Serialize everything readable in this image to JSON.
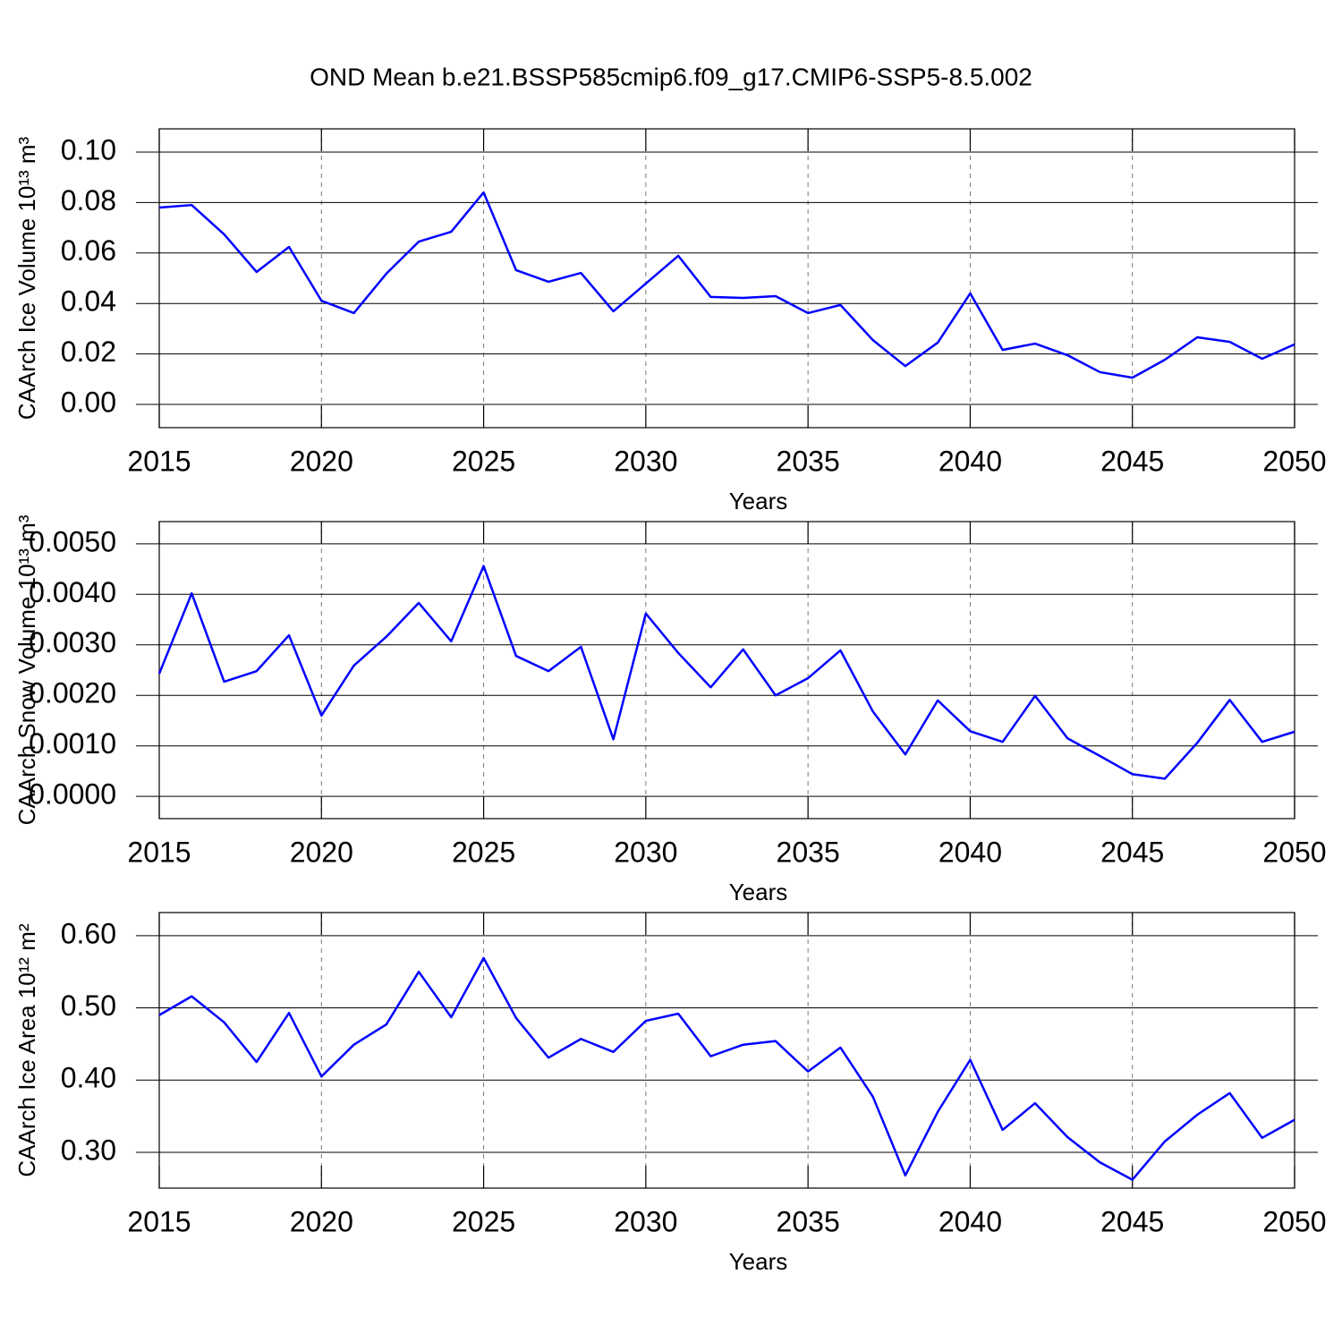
{
  "title": "OND Mean b.e21.BSSP585cmip6.f09_g17.CMIP6-SSP5-8.5.002",
  "chart_data": [
    {
      "type": "line",
      "ylabel": "CAArch Ice Volume 10¹³ m³",
      "xlabel": "Years",
      "x": [
        2015,
        2016,
        2017,
        2018,
        2019,
        2020,
        2021,
        2022,
        2023,
        2024,
        2025,
        2026,
        2027,
        2028,
        2029,
        2030,
        2031,
        2032,
        2033,
        2034,
        2035,
        2036,
        2037,
        2038,
        2039,
        2040,
        2041,
        2042,
        2043,
        2044,
        2045,
        2046,
        2047,
        2048,
        2049,
        2050
      ],
      "values": [
        0.078,
        0.079,
        0.0674,
        0.0525,
        0.0624,
        0.0411,
        0.0362,
        0.0518,
        0.0645,
        0.0684,
        0.084,
        0.0532,
        0.0486,
        0.0521,
        0.0369,
        0.0479,
        0.0589,
        0.0426,
        0.0422,
        0.0429,
        0.0362,
        0.0394,
        0.0255,
        0.0152,
        0.0245,
        0.044,
        0.0216,
        0.0241,
        0.0195,
        0.0128,
        0.0106,
        0.0177,
        0.0266,
        0.0248,
        0.0181,
        0.0238
      ],
      "color": "#0000ff",
      "xlim": [
        2015,
        2050
      ],
      "xticks": [
        2015,
        2020,
        2025,
        2030,
        2035,
        2040,
        2045,
        2050
      ],
      "ylim": [
        -0.0092,
        0.1092
      ],
      "yticks": [
        {
          "value": 0,
          "label": "0.00"
        },
        0.02,
        0.04,
        0.06,
        0.08,
        {
          "value": 0.1,
          "label": "0.10"
        }
      ],
      "grid": true
    },
    {
      "type": "line",
      "ylabel": "CAArch Snow Volume 10¹³ m³",
      "xlabel": "Years",
      "x": [
        2015,
        2016,
        2017,
        2018,
        2019,
        2020,
        2021,
        2022,
        2023,
        2024,
        2025,
        2026,
        2027,
        2028,
        2029,
        2030,
        2031,
        2032,
        2033,
        2034,
        2035,
        2036,
        2037,
        2038,
        2039,
        2040,
        2041,
        2042,
        2043,
        2044,
        2045,
        2046,
        2047,
        2048,
        2049,
        2050
      ],
      "values": [
        0.00243,
        0.00402,
        0.00227,
        0.00248,
        0.00319,
        0.0016,
        0.00259,
        0.00316,
        0.00383,
        0.00307,
        0.00456,
        0.00278,
        0.00248,
        0.00296,
        0.00113,
        0.00362,
        0.00284,
        0.00216,
        0.00291,
        0.002,
        0.00234,
        0.00289,
        0.00168,
        0.00083,
        0.0019,
        0.00129,
        0.00108,
        0.00199,
        0.00115,
        0.0008,
        0.00044,
        0.00035,
        0.00106,
        0.00191,
        0.00108,
        0.00128
      ],
      "color": "#0000ff",
      "xlim": [
        2015,
        2050
      ],
      "xticks": [
        2015,
        2020,
        2025,
        2030,
        2035,
        2040,
        2045,
        2050
      ],
      "ylim": [
        -0.00044,
        0.00544
      ],
      "yticks": [
        {
          "value": 0,
          "label": "0.0000"
        },
        {
          "value": 0.001,
          "label": "0.0010"
        },
        {
          "value": 0.002,
          "label": "0.0020"
        },
        {
          "value": 0.003,
          "label": "0.0030"
        },
        {
          "value": 0.004,
          "label": "0.0040"
        },
        {
          "value": 0.005,
          "label": "0.0050"
        }
      ],
      "grid": true
    },
    {
      "type": "line",
      "ylabel": "CAArch Ice Area 10¹² m²",
      "xlabel": "Years",
      "x": [
        2015,
        2016,
        2017,
        2018,
        2019,
        2020,
        2021,
        2022,
        2023,
        2024,
        2025,
        2026,
        2027,
        2028,
        2029,
        2030,
        2031,
        2032,
        2033,
        2034,
        2035,
        2036,
        2037,
        2038,
        2039,
        2040,
        2041,
        2042,
        2043,
        2044,
        2045,
        2046,
        2047,
        2048,
        2049,
        2050
      ],
      "values": [
        0.49,
        0.516,
        0.48,
        0.425,
        0.493,
        0.405,
        0.449,
        0.477,
        0.55,
        0.487,
        0.569,
        0.486,
        0.431,
        0.457,
        0.439,
        0.482,
        0.492,
        0.433,
        0.449,
        0.454,
        0.412,
        0.445,
        0.377,
        0.268,
        0.356,
        0.428,
        0.331,
        0.368,
        0.321,
        0.286,
        0.262,
        0.315,
        0.352,
        0.382,
        0.32,
        0.345
      ],
      "color": "#0000ff",
      "xlim": [
        2015,
        2050
      ],
      "xticks": [
        2015,
        2020,
        2025,
        2030,
        2035,
        2040,
        2045,
        2050
      ],
      "ylim": [
        0.2504,
        0.632
      ],
      "yticks": [
        {
          "value": 0.3,
          "label": "0.30"
        },
        {
          "value": 0.4,
          "label": "0.40"
        },
        {
          "value": 0.5,
          "label": "0.50"
        },
        {
          "value": 0.6,
          "label": "0.60"
        }
      ],
      "grid": true
    }
  ]
}
